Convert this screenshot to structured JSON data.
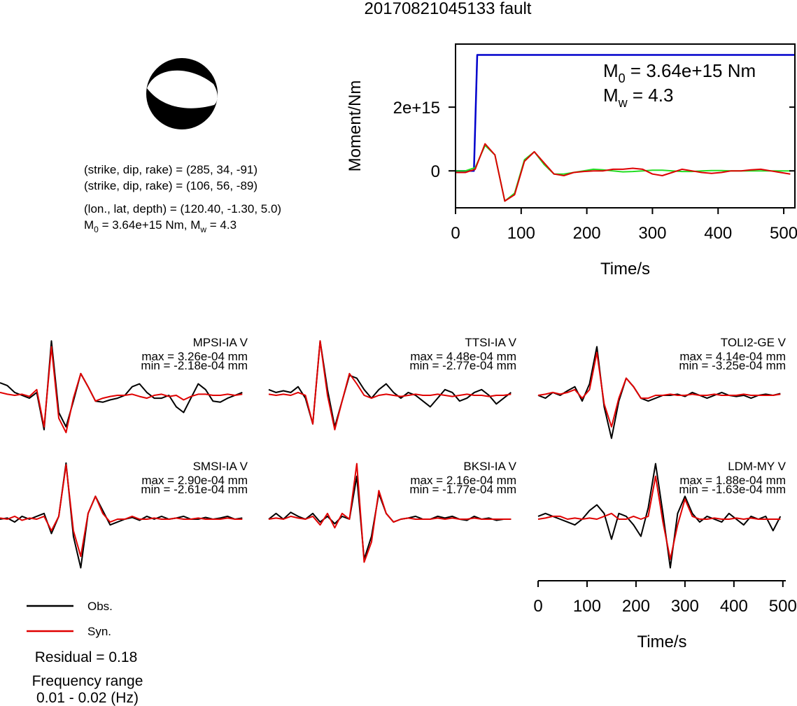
{
  "title": "20170821045133 fault",
  "info": {
    "lines": [
      "(strike, dip, rake) = (285, 34, -91)",
      "(strike, dip, rake) = (106, 56, -89)",
      "(lon., lat, depth) = (120.40, -1.30, 5.0)"
    ],
    "moment": [
      "M",
      "0",
      " = 3.64e+15 Nm, M",
      "w",
      " = 4.3"
    ]
  },
  "legend": [
    {
      "name": "Obs.",
      "color": "#000000"
    },
    {
      "name": "Syn.",
      "color": "#e00000"
    }
  ],
  "residual": "Residual = 0.18",
  "frequency": [
    "Frequency range",
    "0.01 - 0.02 (Hz)"
  ],
  "chart_data": [
    {
      "type": "line",
      "xlabel": "Time/s",
      "ylabel": "Moment/Nm",
      "xlim": [
        0,
        517
      ],
      "ylim": [
        -1160000000000000.0,
        3980000000000000.0
      ],
      "xticks": [
        0,
        100,
        200,
        300,
        400,
        500
      ],
      "yticks": [
        0,
        {
          "value": 2000000000000000.0,
          "label": "2e+15"
        }
      ],
      "annotations": [
        [
          "M",
          "0",
          " = 3.64e+15 Nm"
        ],
        [
          "M",
          "w",
          " = 4.3"
        ]
      ],
      "series": [
        {
          "color": "#0000cc",
          "x": [
            0,
            28,
            33,
            517
          ],
          "values": [
            0,
            0,
            3640000000000000.0,
            3640000000000000.0
          ]
        },
        {
          "color": "#22dd22",
          "x": [
            0,
            15,
            30,
            45,
            60,
            75,
            90,
            105,
            120,
            135,
            150,
            165,
            180,
            195,
            210,
            225,
            240,
            255,
            270,
            285,
            300,
            315,
            330,
            345,
            360,
            375,
            390,
            405,
            420,
            435,
            450,
            465,
            480,
            495,
            510
          ],
          "values": [
            0,
            0,
            100000000000000.0,
            800000000000000.0,
            500000000000000.0,
            -950000000000000.0,
            -700000000000000.0,
            350000000000000.0,
            600000000000000.0,
            200000000000000.0,
            -100000000000000.0,
            -100000000000000.0,
            -50000000000000.0,
            0,
            50000000000000.0,
            30000000000000.0,
            0,
            -30000000000000.0,
            -20000000000000.0,
            0,
            20000000000000.0,
            20000000000000.0,
            0,
            -20000000000000.0,
            -20000000000000.0,
            0,
            10000000000000.0,
            10000000000000.0,
            0,
            0,
            0,
            0,
            0,
            0,
            0
          ]
        },
        {
          "color": "#dd0000",
          "x": [
            0,
            15,
            30,
            45,
            60,
            75,
            90,
            105,
            120,
            135,
            150,
            165,
            180,
            195,
            210,
            225,
            240,
            255,
            270,
            285,
            300,
            315,
            330,
            345,
            360,
            375,
            390,
            405,
            420,
            435,
            450,
            465,
            480,
            495,
            510
          ],
          "values": [
            -50000000000000.0,
            -50000000000000.0,
            50000000000000.0,
            850000000000000.0,
            500000000000000.0,
            -950000000000000.0,
            -750000000000000.0,
            300000000000000.0,
            600000000000000.0,
            250000000000000.0,
            -100000000000000.0,
            -150000000000000.0,
            -50000000000000.0,
            -20000000000000.0,
            0,
            0,
            50000000000000.0,
            50000000000000.0,
            80000000000000.0,
            50000000000000.0,
            -100000000000000.0,
            -150000000000000.0,
            -50000000000000.0,
            50000000000000.0,
            0,
            -50000000000000.0,
            -80000000000000.0,
            -50000000000000.0,
            0,
            0,
            30000000000000.0,
            50000000000000.0,
            0,
            -50000000000000.0,
            -100000000000000.0
          ]
        }
      ]
    },
    {
      "type": "line",
      "xlabel": "Time/s",
      "xlim": [
        0,
        506
      ],
      "ylim": [
        -1.1,
        1.1
      ],
      "xticks": [
        0,
        100,
        200,
        300,
        400,
        500
      ],
      "x": [
        0,
        15,
        30,
        45,
        60,
        75,
        90,
        105,
        120,
        135,
        150,
        165,
        180,
        195,
        210,
        225,
        240,
        255,
        270,
        285,
        300,
        315,
        330,
        345,
        360,
        375,
        390,
        405,
        420,
        435,
        450,
        465,
        480,
        495
      ],
      "panels": [
        {
          "label": "MPSI-IA V",
          "max": "max = 3.26e-04 mm",
          "min": "min = -2.18e-04 mm",
          "obs": [
            0.22,
            0.17,
            0.05,
            0,
            -0.05,
            0.05,
            -0.6,
            0.95,
            -0.3,
            -0.55,
            -0.1,
            0.38,
            0.15,
            -0.1,
            -0.12,
            -0.08,
            -0.05,
            0,
            0.15,
            0.2,
            0.05,
            -0.05,
            -0.05,
            0,
            -0.2,
            -0.3,
            -0.05,
            0.2,
            0.1,
            -0.1,
            -0.12,
            -0.05,
            0,
            0.05
          ],
          "syn": [
            0.05,
            0.02,
            0,
            0.02,
            -0.02,
            0.1,
            -0.55,
            0.85,
            -0.4,
            -0.65,
            -0.05,
            0.38,
            0.15,
            -0.1,
            -0.05,
            -0.02,
            0,
            0,
            0.02,
            -0.02,
            -0.05,
            0,
            0.02,
            -0.02,
            0,
            -0.08,
            -0.02,
            0.02,
            0.02,
            0,
            0,
            0.02,
            0,
            0.02
          ]
        },
        {
          "label": "TTSI-IA V",
          "max": "max = 4.48e-04 mm",
          "min": "min = -2.77e-04 mm",
          "obs": [
            0.1,
            0.05,
            0.08,
            0.05,
            0.15,
            -0.05,
            -0.5,
            0.95,
            0.1,
            -0.55,
            -0.1,
            0.35,
            0.3,
            0.1,
            -0.05,
            0.1,
            0.2,
            0.05,
            -0.05,
            0.05,
            0,
            -0.1,
            -0.2,
            -0.05,
            0.1,
            0.05,
            -0.1,
            -0.05,
            0.05,
            0.1,
            0,
            -0.15,
            -0.05,
            0.05
          ],
          "syn": [
            0.02,
            0,
            0.02,
            0,
            0.05,
            0,
            -0.5,
            0.95,
            0,
            -0.6,
            -0.1,
            0.38,
            0.2,
            0,
            -0.05,
            0,
            0.02,
            0,
            -0.02,
            0,
            0.02,
            0,
            0,
            0.02,
            0,
            -0.02,
            0,
            0.02,
            0,
            0,
            -0.02,
            0,
            0,
            0.02
          ]
        },
        {
          "label": "TOLI2-GE V",
          "max": "max = 4.14e-04 mm",
          "min": "min = -3.25e-04 mm",
          "obs": [
            0,
            -0.05,
            0.05,
            0,
            0.08,
            0.15,
            -0.1,
            0.2,
            0.85,
            -0.2,
            -0.75,
            -0.1,
            0.3,
            0.15,
            -0.05,
            -0.1,
            -0.05,
            0,
            0,
            0.02,
            -0.02,
            0.05,
            0,
            -0.05,
            0,
            0.05,
            0,
            -0.02,
            0,
            -0.05,
            0,
            0.02,
            0,
            0.03
          ],
          "syn": [
            0,
            0.02,
            0.05,
            0.02,
            0.05,
            0.1,
            -0.05,
            0.1,
            0.75,
            -0.15,
            -0.55,
            -0.05,
            0.3,
            0.15,
            -0.05,
            -0.05,
            0,
            0,
            0.02,
            0,
            0,
            0.02,
            0,
            0,
            0.02,
            0,
            0,
            0,
            0.02,
            0,
            0,
            0,
            0,
            0.02
          ]
        },
        {
          "label": "SMSI-IA V",
          "max": "max = 2.90e-04 mm",
          "min": "min = -2.61e-04 mm",
          "obs": [
            0,
            0.02,
            -0.05,
            0.05,
            0,
            0.05,
            0.1,
            -0.25,
            0.05,
            0.98,
            -0.3,
            -0.85,
            0.1,
            0.4,
            0.15,
            -0.1,
            -0.05,
            0,
            0.03,
            -0.02,
            0.05,
            0,
            0.05,
            0,
            0.02,
            0.05,
            0,
            0,
            0.03,
            0,
            0.02,
            0.05,
            0,
            0.02
          ],
          "syn": [
            0.02,
            0,
            0.05,
            -0.02,
            0.02,
            0,
            0.05,
            -0.2,
            0.05,
            0.95,
            -0.2,
            -0.65,
            0.1,
            0.4,
            0.1,
            -0.05,
            0,
            0,
            0.05,
            0,
            0,
            0.02,
            0,
            0,
            0.02,
            0,
            0,
            0.02,
            0,
            0,
            0,
            0.02,
            0,
            0
          ]
        },
        {
          "label": "BKSI-IA V",
          "max": "max = 2.16e-04 mm",
          "min": "min = -1.77e-04 mm",
          "obs": [
            0,
            0.1,
            0,
            0.12,
            0.05,
            0,
            0.1,
            -0.05,
            0.05,
            -0.08,
            0.05,
            0,
            0.75,
            -0.7,
            -0.3,
            0.45,
            0.1,
            -0.05,
            0,
            0.02,
            0.05,
            0,
            0,
            0.05,
            0.02,
            0.05,
            0,
            -0.02,
            0.05,
            0,
            0.02,
            -0.02,
            0,
            0
          ],
          "syn": [
            0,
            0.02,
            0,
            0.05,
            0.02,
            0,
            0.05,
            -0.1,
            0.1,
            -0.15,
            0.1,
            0,
            0.97,
            -0.75,
            -0.4,
            0.5,
            0.1,
            -0.05,
            0,
            0.02,
            0,
            0,
            0,
            0.02,
            0,
            0.02,
            0,
            0,
            0.02,
            0,
            0,
            0,
            0,
            0
          ]
        },
        {
          "label": "LDM-MY V",
          "max": "max = 1.88e-04 mm",
          "min": "min = -1.63e-04 mm",
          "obs": [
            0.05,
            0.1,
            0.05,
            0,
            -0.05,
            -0.1,
            0,
            0.15,
            0.25,
            0.1,
            -0.35,
            0.1,
            0.05,
            -0.1,
            -0.3,
            0.2,
            0.97,
            0.1,
            -0.85,
            0.1,
            0.4,
            0.1,
            -0.05,
            0.05,
            0,
            -0.05,
            0.1,
            0,
            -0.1,
            0.05,
            0,
            0.05,
            -0.2,
            0.05
          ],
          "syn": [
            0,
            0.02,
            0.05,
            0.05,
            0,
            0.02,
            0,
            0.02,
            0,
            0.05,
            0.1,
            0,
            0,
            0.05,
            0,
            0.05,
            0.75,
            -0.05,
            -0.7,
            -0.1,
            0.35,
            0.05,
            0,
            0,
            0.02,
            0,
            0,
            0.02,
            0,
            0.02,
            0,
            0,
            0,
            0
          ]
        }
      ]
    }
  ]
}
